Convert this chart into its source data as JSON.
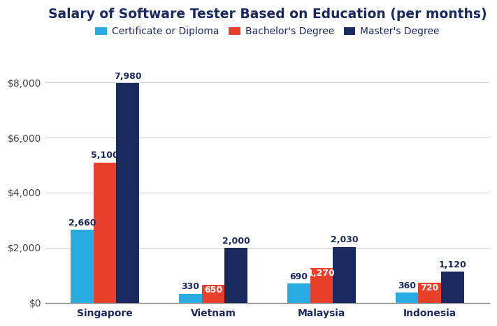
{
  "title": "Salary of Software Tester Based on Education (per months)",
  "categories": [
    "Singapore",
    "Vietnam",
    "Malaysia",
    "Indonesia"
  ],
  "series": [
    {
      "label": "Certificate or Diploma",
      "color": "#29ABE2",
      "values": [
        2660,
        330,
        690,
        360
      ]
    },
    {
      "label": "Bachelor's Degree",
      "color": "#E8402A",
      "values": [
        5100,
        650,
        1270,
        720
      ]
    },
    {
      "label": "Master's Degree",
      "color": "#1B2A5E",
      "values": [
        7980,
        2000,
        2030,
        1120
      ]
    }
  ],
  "ylim": [
    0,
    9000
  ],
  "yticks": [
    0,
    2000,
    4000,
    6000,
    8000
  ],
  "ytick_labels": [
    "$0",
    "$2,000",
    "$4,000",
    "$6,000",
    "$8,000"
  ],
  "bar_width": 0.21,
  "background_color": "#FFFFFF",
  "title_color": "#1B2A5E",
  "label_color": "#1B2A5E",
  "grid_color": "#CCCCCC",
  "title_fontsize": 13.5,
  "legend_fontsize": 10,
  "tick_fontsize": 10,
  "annotation_fontsize": 9,
  "annotations_inside_bar": [
    [
      false,
      false,
      false,
      false
    ],
    [
      false,
      true,
      true,
      true
    ],
    [
      false,
      false,
      false,
      false
    ]
  ]
}
